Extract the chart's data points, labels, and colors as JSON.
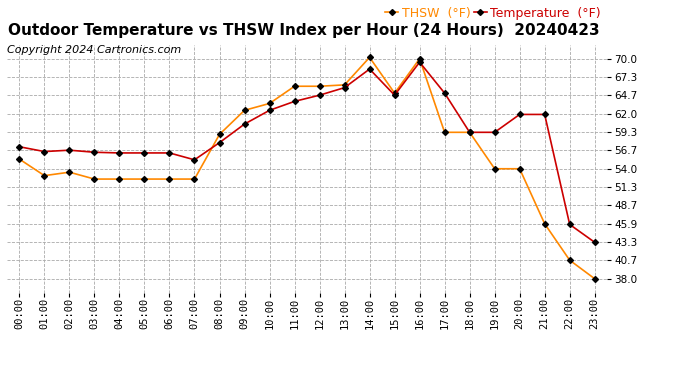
{
  "title": "Outdoor Temperature vs THSW Index per Hour (24 Hours)  20240423",
  "copyright": "Copyright 2024 Cartronics.com",
  "hours": [
    "00:00",
    "01:00",
    "02:00",
    "03:00",
    "04:00",
    "05:00",
    "06:00",
    "07:00",
    "08:00",
    "09:00",
    "10:00",
    "11:00",
    "12:00",
    "13:00",
    "14:00",
    "15:00",
    "16:00",
    "17:00",
    "18:00",
    "19:00",
    "20:00",
    "21:00",
    "22:00",
    "23:00"
  ],
  "temperature": [
    57.2,
    56.5,
    56.7,
    56.4,
    56.3,
    56.3,
    56.3,
    55.3,
    57.8,
    60.5,
    62.5,
    63.8,
    64.7,
    65.8,
    68.5,
    64.7,
    69.5,
    65.0,
    59.3,
    59.3,
    61.9,
    61.9,
    45.9,
    43.3
  ],
  "thsw": [
    55.4,
    53.0,
    53.5,
    52.5,
    52.5,
    52.5,
    52.5,
    52.5,
    59.0,
    62.5,
    63.5,
    66.0,
    66.0,
    66.2,
    70.2,
    65.0,
    70.0,
    59.3,
    59.3,
    54.0,
    54.0,
    46.0,
    40.7,
    38.0
  ],
  "temp_color": "#cc0000",
  "thsw_color": "#ff8800",
  "marker": "D",
  "marker_size": 3,
  "ylim": [
    36.0,
    72.0
  ],
  "yticks": [
    38.0,
    40.7,
    43.3,
    45.9,
    48.7,
    51.3,
    54.0,
    56.7,
    59.3,
    62.0,
    64.7,
    67.3,
    70.0
  ],
  "background_color": "#ffffff",
  "grid_color": "#aaaaaa",
  "title_fontsize": 11,
  "legend_fontsize": 9,
  "copyright_fontsize": 8,
  "tick_fontsize": 7.5
}
